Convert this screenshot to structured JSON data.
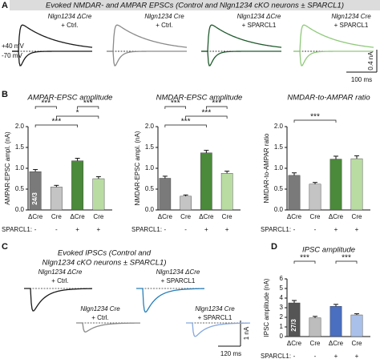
{
  "panel_a": {
    "label": "A",
    "title": "Evoked NMDAR- and AMPAR EPSCs (Control and Nlgn1234 cKO neurons ± SPARCL1)",
    "traces": [
      {
        "lines": [
          "Nlgn1234 ΔCre",
          "+ Ctrl."
        ],
        "color": "#1a1a1a"
      },
      {
        "lines": [
          "Nlgn1234 Cre",
          "+ Ctrl."
        ],
        "color": "#8a8a8a"
      },
      {
        "lines": [
          "Nlgn1234 ΔCre",
          "+ SPARCL1"
        ],
        "color": "#1f5a2c"
      },
      {
        "lines": [
          "Nlgn1234 Cre",
          "+ SPARCL1"
        ],
        "color": "#8fc97a"
      }
    ],
    "holding": [
      "+40 mV",
      "-70 mV"
    ],
    "scale": [
      "0.4 nA",
      "100 ms"
    ]
  },
  "panel_b": {
    "label": "B"
  },
  "panel_c": {
    "label": "C",
    "title": [
      "Evoked IPSCs (Control and",
      "Nlgn1234 cKO neurons ± SPARCL1)"
    ],
    "traces": [
      {
        "lines": [
          "Nlgn1234 ΔCre",
          "+ Ctrl."
        ],
        "color": "#1a1a1a"
      },
      {
        "lines": [
          "Nlgn1234 Cre",
          "+ Ctrl."
        ],
        "color": "#8a8a8a"
      },
      {
        "lines": [
          "Nlgn1234 ΔCre",
          "+ SPARCL1"
        ],
        "color": "#2a7fb8"
      },
      {
        "lines": [
          "Nlgn1234 Cre",
          "+ SPARCL1"
        ],
        "color": "#86a8de"
      }
    ],
    "scale": [
      "1 nA",
      "120 ms"
    ]
  },
  "panel_d": {
    "label": "D"
  },
  "chart_data": [
    {
      "type": "bar",
      "title": "AMPAR-EPSC amplitude",
      "ylabel": "AMPAR-EPSC ampl. (nA)",
      "categories": [
        "ΔCre",
        "Cre",
        "ΔCre",
        "Cre"
      ],
      "values": [
        0.92,
        0.55,
        1.18,
        0.75
      ],
      "errors": [
        0.05,
        0.04,
        0.06,
        0.05
      ],
      "colors": [
        "#7a7a7a",
        "#c4c4c4",
        "#4a8a3a",
        "#b9dca2"
      ],
      "bar_label": "24/3",
      "ylim": [
        0,
        2
      ],
      "yticks": [
        {
          "value": 0,
          "label": "0.0"
        },
        0.5,
        {
          "value": 1,
          "label": "1.0"
        },
        1.5,
        {
          "value": 2,
          "label": "2.0"
        }
      ],
      "annotations": [
        "***",
        "***",
        "*",
        "***"
      ],
      "row_label": "SPARCL1:",
      "row_values": [
        "-",
        "-",
        "+",
        "+"
      ]
    },
    {
      "type": "bar",
      "title": "NMDAR-EPSC amplitude",
      "ylabel": "NMDAR-EPSC ampl. (nA)",
      "categories": [
        "ΔCre",
        "Cre",
        "ΔCre",
        "Cre"
      ],
      "values": [
        0.76,
        0.33,
        1.37,
        0.88
      ],
      "errors": [
        0.05,
        0.03,
        0.06,
        0.05
      ],
      "colors": [
        "#7a7a7a",
        "#c4c4c4",
        "#4a8a3a",
        "#b9dca2"
      ],
      "ylim": [
        0,
        2
      ],
      "yticks": [
        {
          "value": 0,
          "label": "0.0"
        },
        0.5,
        {
          "value": 1,
          "label": "1.0"
        },
        1.5,
        {
          "value": 2,
          "label": "2.0"
        }
      ],
      "annotations": [
        "***",
        "***",
        "***",
        "***"
      ],
      "row_label": "SPARCL1:",
      "row_values": [
        "-",
        "-",
        "+",
        "+"
      ]
    },
    {
      "type": "bar",
      "title": "NMDAR-to-AMPAR ratio",
      "ylabel": "NMDAR-to-AMPAR ratio",
      "categories": [
        "ΔCre",
        "Cre",
        "ΔCre",
        "Cre"
      ],
      "values": [
        0.83,
        0.62,
        1.22,
        1.23
      ],
      "errors": [
        0.06,
        0.04,
        0.07,
        0.07
      ],
      "colors": [
        "#7a7a7a",
        "#c4c4c4",
        "#4a8a3a",
        "#b9dca2"
      ],
      "ylim": [
        0,
        2
      ],
      "yticks": [
        {
          "value": 0,
          "label": "0.0"
        },
        0.5,
        {
          "value": 1,
          "label": "1.0"
        },
        1.5,
        {
          "value": 2,
          "label": "2.0"
        }
      ],
      "annotations": [
        "***"
      ],
      "row_label": "SPARCL1:",
      "row_values": [
        "-",
        "-",
        "+",
        "+"
      ]
    },
    {
      "type": "bar",
      "title": "IPSC amplitude",
      "ylabel": "IPSC amplitude (nA)",
      "categories": [
        "ΔCre",
        "Cre",
        "ΔCre",
        "Cre"
      ],
      "values": [
        3.5,
        1.95,
        3.15,
        2.25
      ],
      "errors": [
        0.25,
        0.15,
        0.2,
        0.12
      ],
      "colors": [
        "#555555",
        "#bdbdbd",
        "#4a6fc0",
        "#a9c1ea"
      ],
      "bar_label": "27/3",
      "ylim": [
        0,
        6
      ],
      "yticks": [
        0,
        1,
        2,
        3,
        4,
        5,
        6
      ],
      "annotations": [
        "***",
        "***"
      ],
      "row_label": "SPARCL1:",
      "row_values": [
        "-",
        "-",
        "+",
        "+"
      ]
    }
  ]
}
